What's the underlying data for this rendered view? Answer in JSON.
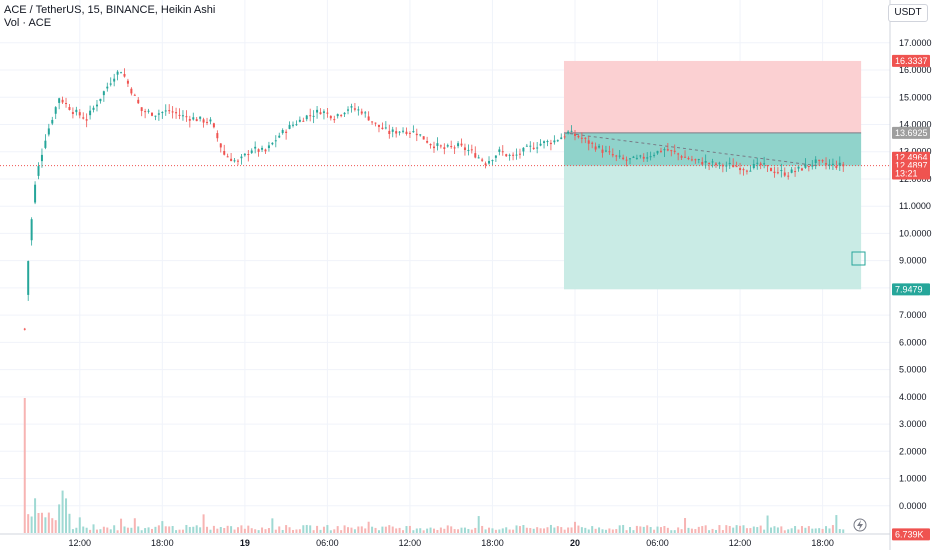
{
  "header": {
    "title": "ACE / TetherUS, 15, BINANCE, Heikin Ashi",
    "volume_label": "Vol · ACE",
    "currency": "USDT"
  },
  "colors": {
    "up": "#26a69a",
    "down": "#ef5350",
    "grid": "#f0f3fa",
    "stop_zone": "#fbd0d2",
    "target_zone": "#c9ebe5",
    "entry_tag": "#9e9e9e",
    "stop_tag": "#ef5350",
    "target_tag": "#26a69a"
  },
  "chart_data": {
    "type": "candlestick",
    "style": "Heikin Ashi",
    "symbol": "ACE / TetherUS",
    "interval": "15",
    "exchange": "BINANCE",
    "y_ticks": [
      "17.0000",
      "16.0000",
      "15.0000",
      "14.0000",
      "13.0000",
      "12.0000",
      "11.0000",
      "10.0000",
      "9.0000",
      "8.0000",
      "7.0000",
      "6.0000",
      "5.0000",
      "4.0000",
      "3.0000",
      "2.0000",
      "1.0000",
      "0.0000"
    ],
    "ylim": [
      -1.0,
      17.8
    ],
    "x_ticks": [
      {
        "label": "12:00",
        "bold": false,
        "t": 4
      },
      {
        "label": "18:00",
        "bold": false,
        "t": 10
      },
      {
        "label": "19",
        "bold": true,
        "t": 16
      },
      {
        "label": "06:00",
        "bold": false,
        "t": 22
      },
      {
        "label": "12:00",
        "bold": false,
        "t": 28
      },
      {
        "label": "18:00",
        "bold": false,
        "t": 34
      },
      {
        "label": "20",
        "bold": true,
        "t": 40
      },
      {
        "label": "06:00",
        "bold": false,
        "t": 46
      },
      {
        "label": "12:00",
        "bold": false,
        "t": 52
      },
      {
        "label": "18:00",
        "bold": false,
        "t": 58
      }
    ],
    "x_range_hours": [
      -1.8,
      62.9
    ],
    "price_path_hours": [
      0,
      0.3,
      0.8,
      1.5,
      2.5,
      3.5,
      4.5,
      5.5,
      6.5,
      7.0,
      7.5,
      8.5,
      9.5,
      10.5,
      11.5,
      12.5,
      13.5,
      14.5,
      15.5,
      16.5,
      17.5,
      18.5,
      19.5,
      20.5,
      21.5,
      22.5,
      23.5,
      24.5,
      25.5,
      26.5,
      27.5,
      28.5,
      29.5,
      30.5,
      31.5,
      32.5,
      33.5,
      34.5,
      35.5,
      36.5,
      37.5,
      38.5,
      39.5,
      40.5,
      41.5,
      42.5,
      43.5,
      44.5,
      45.5,
      46.5,
      47.5,
      48.5,
      49.5,
      50.5,
      51.5,
      52.5,
      53.5,
      54.5,
      55.5,
      56.5,
      57.5,
      58.5,
      59.5
    ],
    "price_path_values": [
      6.5,
      9.5,
      12.0,
      13.5,
      15.0,
      14.5,
      14.2,
      15.0,
      15.8,
      16.0,
      15.5,
      14.5,
      14.4,
      14.5,
      14.3,
      14.2,
      14.1,
      12.9,
      12.6,
      13.1,
      13.0,
      13.6,
      14.0,
      14.3,
      14.5,
      14.3,
      14.6,
      14.5,
      14.0,
      13.7,
      13.8,
      13.7,
      13.3,
      13.1,
      13.2,
      13.0,
      12.6,
      13.0,
      12.8,
      13.1,
      13.3,
      13.4,
      13.7,
      13.5,
      13.2,
      12.9,
      12.7,
      12.7,
      12.9,
      13.1,
      12.9,
      12.7,
      12.6,
      12.5,
      12.5,
      12.4,
      12.5,
      12.3,
      12.2,
      12.4,
      12.6,
      12.5,
      12.49
    ],
    "price_path_tolerance": 0.25,
    "volume_profile": {
      "peak": "13.7K",
      "last": "6.739K",
      "spike_hours": [
        0.0,
        0.5,
        1.0,
        1.5,
        2.0,
        2.5,
        3.0,
        4.0,
        5.0,
        7.0,
        8.0,
        10.0,
        13.0,
        18.0,
        25.0,
        33.0,
        40.0,
        48.0,
        54.0,
        59.0
      ]
    },
    "position": {
      "type": "short",
      "entry": 13.6925,
      "stop": 16.3337,
      "target": 7.9479,
      "start_hour": 39.2,
      "end_hour": 60.8,
      "last_price": 12.4897,
      "last_label": "12.4897",
      "entry_label": "13.6925",
      "stop_label": "16.3337",
      "target_label": "7.9479",
      "mid_label": "12.4964",
      "countdown_label": "13:21",
      "volume_tag": "6.739K"
    },
    "grid": true
  }
}
